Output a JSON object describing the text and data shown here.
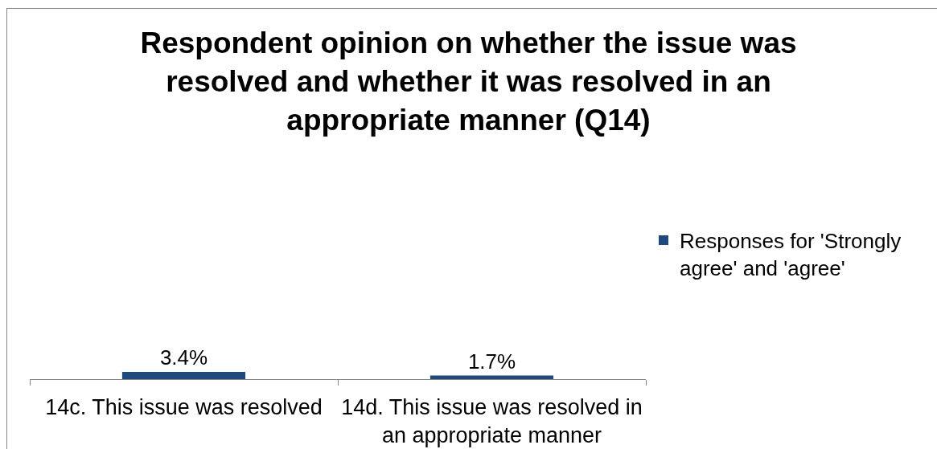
{
  "chart_data": {
    "type": "bar",
    "title": "Respondent opinion on whether the issue was resolved and whether it was resolved in an appropriate manner (Q14)",
    "categories": [
      "14c. This issue was resolved",
      "14d. This issue was resolved in an appropriate manner"
    ],
    "series": [
      {
        "name": "Responses for 'Strongly agree' and 'agree'",
        "color": "#1f497d",
        "values": [
          3.4,
          1.7
        ],
        "value_labels": [
          "3.4%",
          "1.7%"
        ]
      }
    ],
    "tick_labels": "x",
    "legend": "right"
  }
}
